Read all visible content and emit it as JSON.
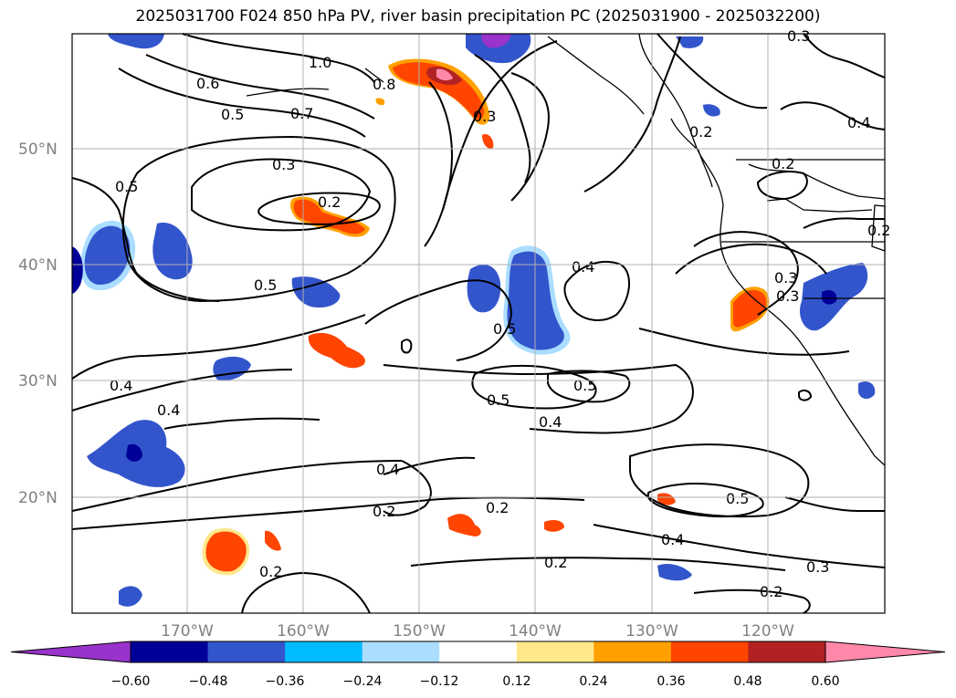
{
  "title": "2025031700 F024 850 hPa PV, river basin precipitation PC (2025031900 - 2025032200)",
  "map": {
    "lat_labels": [
      "50°N",
      "40°N",
      "30°N",
      "20°N"
    ],
    "lon_labels": [
      "170°W",
      "160°W",
      "150°W",
      "140°W",
      "130°W",
      "120°W"
    ],
    "contour_labels": [
      "1.0",
      "0.6",
      "0.5",
      "0.7",
      "0.8",
      "0.3",
      "0.3",
      "0.2",
      "0.5",
      "0.5",
      "0.4",
      "0.4",
      "0.5",
      "0.4",
      "0.5",
      "0.5",
      "0.4",
      "0.2",
      "0.2",
      "0.5",
      "0.4",
      "0.2",
      "0.3",
      "0.2",
      "0.2",
      "0.2",
      "0.3",
      "0.4",
      "0.2",
      "0.3",
      "0.4",
      "0.3",
      "0.2"
    ],
    "colors": {
      "land_outline": "#000000",
      "grid": "#b0b0b0"
    }
  },
  "colorbar": {
    "ticks": [
      "−0.60",
      "−0.48",
      "−0.36",
      "−0.24",
      "−0.12",
      "0.12",
      "0.24",
      "0.36",
      "0.48",
      "0.60"
    ],
    "colors": [
      "#9933cc",
      "#000099",
      "#3355cc",
      "#00bbff",
      "#aaddff",
      "#ffffff",
      "#ffe88a",
      "#ffa000",
      "#ff4500",
      "#b22222",
      "#ff88aa"
    ]
  }
}
